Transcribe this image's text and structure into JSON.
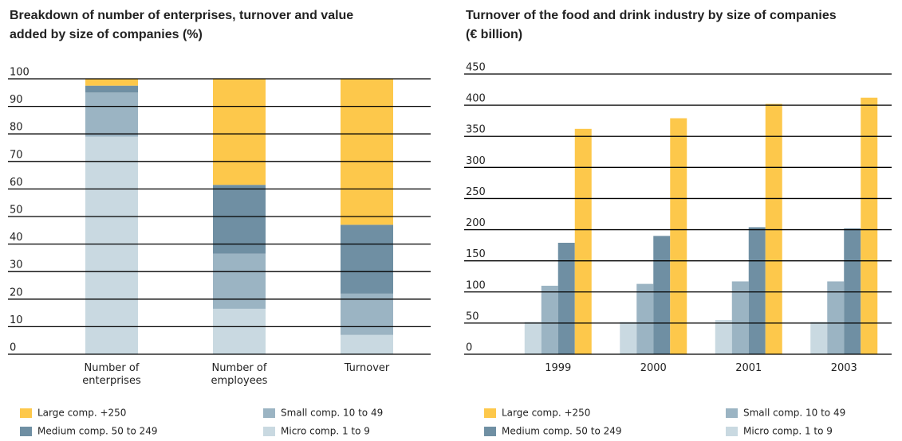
{
  "chart_data": [
    {
      "type": "stacked_bar",
      "title": "Breakdown of number of enterprises, turnover and value added by size of companies (%)",
      "categories": [
        "Number of enterprises",
        "Number of employees",
        "Turnover"
      ],
      "series": [
        {
          "name": "Micro comp. 1 to 9",
          "color": "#c9d9e1",
          "values": [
            79,
            16.5,
            7
          ]
        },
        {
          "name": "Small comp. 10 to 49",
          "color": "#9bb4c3",
          "values": [
            16,
            20,
            15
          ]
        },
        {
          "name": "Medium comp. 50 to 249",
          "color": "#6f8fa3",
          "values": [
            2.5,
            25,
            25
          ]
        },
        {
          "name": "Large comp. +250",
          "color": "#fdc84b",
          "values": [
            2.5,
            38.5,
            53
          ]
        }
      ],
      "ylim": [
        0,
        100
      ],
      "yticks": [
        0,
        10,
        20,
        30,
        40,
        50,
        60,
        70,
        80,
        90,
        100
      ],
      "grid": true
    },
    {
      "type": "bar",
      "title": "Turnover of the food and drink industry by size of companies (€ billion)",
      "categories": [
        "1999",
        "2000",
        "2001",
        "2003"
      ],
      "series": [
        {
          "name": "Micro comp. 1 to 9",
          "color": "#c9d9e1",
          "values": [
            52,
            52,
            55,
            52
          ]
        },
        {
          "name": "Small comp. 10 to 49",
          "color": "#9bb4c3",
          "values": [
            110,
            113,
            117,
            117
          ]
        },
        {
          "name": "Medium comp. 50 to 249",
          "color": "#6f8fa3",
          "values": [
            179,
            190,
            204,
            202
          ]
        },
        {
          "name": "Large comp. +250",
          "color": "#fdc84b",
          "values": [
            362,
            379,
            402,
            412
          ]
        }
      ],
      "ylim": [
        0,
        450
      ],
      "yticks": [
        0,
        50,
        100,
        150,
        200,
        250,
        300,
        350,
        400,
        450
      ],
      "grid": true
    }
  ]
}
